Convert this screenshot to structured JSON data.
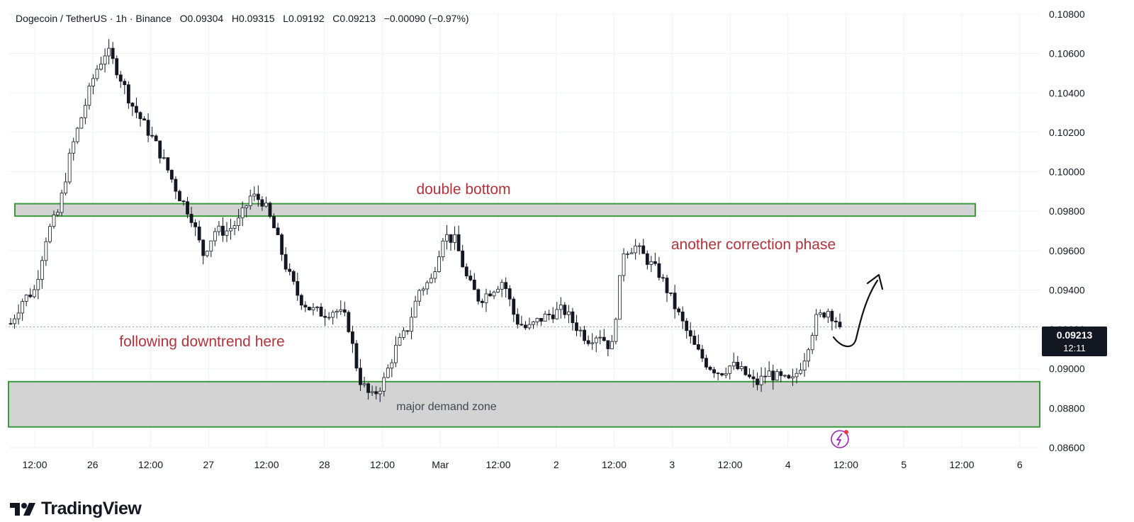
{
  "header": {
    "symbol": "Dogecoin / TetherUS · 1h · Binance",
    "open": "O0.09304",
    "high": "H0.09315",
    "low": "L0.09192",
    "close": "C0.09213",
    "change": "−0.00090 (−0.97%)"
  },
  "brand": {
    "name": "TradingView"
  },
  "current_price": {
    "price": "0.09213",
    "countdown": "12:11"
  },
  "colors": {
    "zone_border": "#3c9a3c",
    "zone_fill": "#d3d3d3",
    "annotation_red": "#b2333b",
    "candle": "#131722",
    "grid": "#eef0f3"
  },
  "chart_data": {
    "type": "candlestick",
    "yaxis": {
      "range": [
        0.086,
        0.108
      ],
      "ticks": [
        "0.10800",
        "0.10600",
        "0.10400",
        "0.10200",
        "0.10000",
        "0.09800",
        "0.09600",
        "0.09400",
        "0.09200",
        "0.09000",
        "0.08800",
        "0.08600"
      ]
    },
    "xaxis": {
      "ticks": [
        "12:00",
        "26",
        "12:00",
        "27",
        "12:00",
        "28",
        "12:00",
        "Mar",
        "12:00",
        "2",
        "12:00",
        "3",
        "12:00",
        "4",
        "12:00",
        "5",
        "12:00",
        "6"
      ]
    },
    "close_path": [
      0.0923,
      0.0935,
      0.094,
      0.0968,
      0.098,
      0.101,
      0.103,
      0.105,
      0.1062,
      0.105,
      0.1035,
      0.1025,
      0.1015,
      0.1002,
      0.0988,
      0.0978,
      0.0958,
      0.097,
      0.097,
      0.0975,
      0.0988,
      0.0985,
      0.097,
      0.095,
      0.0936,
      0.093,
      0.0928,
      0.093,
      0.0925,
      0.0895,
      0.0885,
      0.0893,
      0.091,
      0.092,
      0.094,
      0.0945,
      0.0968,
      0.0965,
      0.0945,
      0.0935,
      0.094,
      0.0945,
      0.0925,
      0.092,
      0.0925,
      0.0928,
      0.093,
      0.0922,
      0.0915,
      0.0918,
      0.091,
      0.096,
      0.0962,
      0.0955,
      0.0948,
      0.0935,
      0.0922,
      0.091,
      0.0902,
      0.0898,
      0.0902,
      0.0898,
      0.0892,
      0.0898,
      0.0895,
      0.0893,
      0.0905,
      0.0925,
      0.093,
      0.0922
    ],
    "last_close": 0.09213,
    "zones": [
      {
        "label": "double bottom",
        "low": 0.09775,
        "high": 0.09838
      },
      {
        "label": "major demand zone",
        "low": 0.08705,
        "high": 0.08935
      }
    ],
    "annotations": [
      {
        "text": "double bottom"
      },
      {
        "text": "another correction phase"
      },
      {
        "text": "following downtrend here"
      },
      {
        "text": "major demand zone"
      }
    ]
  }
}
